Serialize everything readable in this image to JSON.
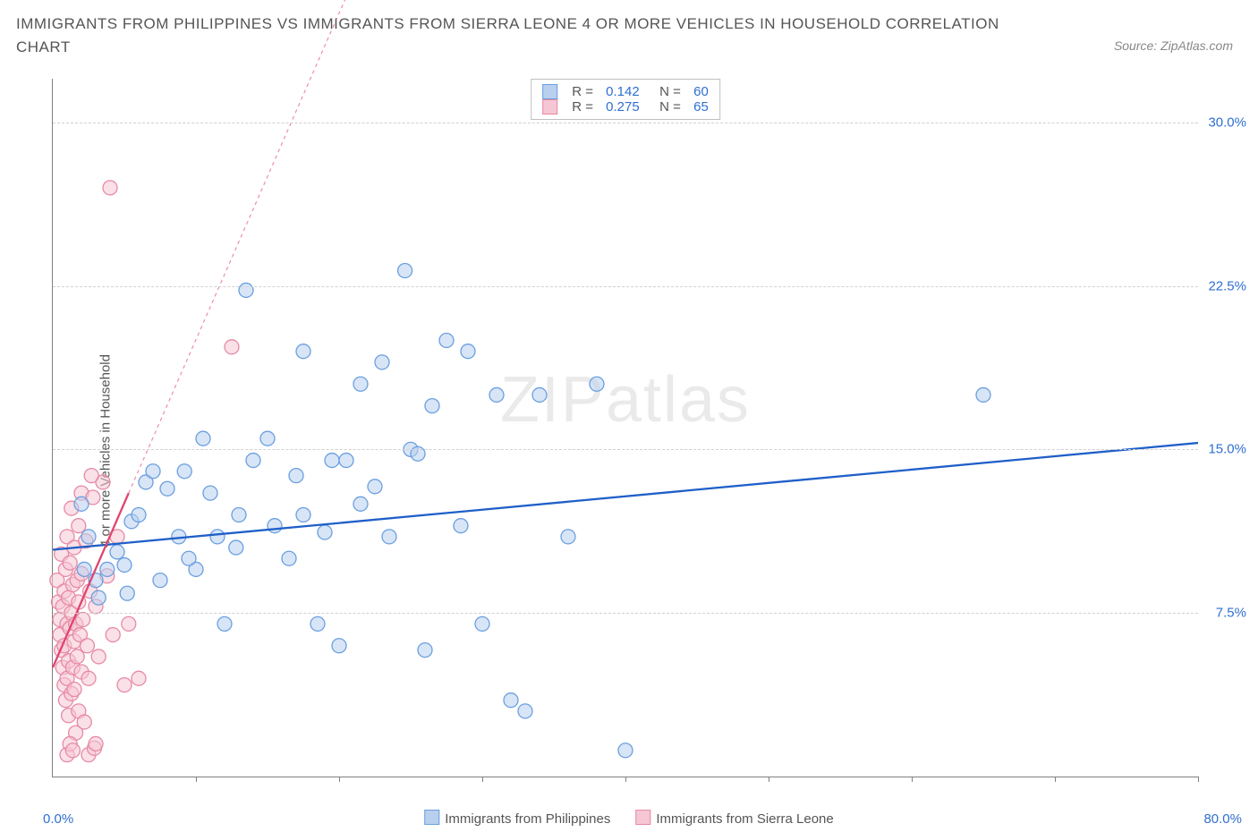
{
  "title": "IMMIGRANTS FROM PHILIPPINES VS IMMIGRANTS FROM SIERRA LEONE 4 OR MORE VEHICLES IN HOUSEHOLD CORRELATION CHART",
  "source_label": "Source: ZipAtlas.com",
  "ylabel": "4 or more Vehicles in Household",
  "watermark_a": "ZIP",
  "watermark_b": "atlas",
  "chart": {
    "type": "scatter",
    "xlim": [
      0,
      80
    ],
    "ylim": [
      0,
      32
    ],
    "x_min_label": "0.0%",
    "x_max_label": "80.0%",
    "x_ticks": [
      10,
      20,
      30,
      40,
      50,
      60,
      70,
      80
    ],
    "y_gridlines": [
      7.5,
      15.0,
      22.5,
      30.0
    ],
    "y_tick_labels": [
      "7.5%",
      "15.0%",
      "22.5%",
      "30.0%"
    ],
    "grid_color": "#d0d0d0",
    "axis_color": "#808080",
    "tick_font_color": "#2f6fd0",
    "marker_radius": 8,
    "marker_stroke_width": 1.3,
    "series": [
      {
        "name": "Immigrants from Philippines",
        "fill": "#b8d0ee",
        "stroke": "#6a9fe0",
        "fill_opacity": 0.55,
        "R": "0.142",
        "N": "60",
        "trend": {
          "x1": 0,
          "y1": 10.4,
          "x2": 80,
          "y2": 15.3,
          "color": "#1f5fc9",
          "width": 2.3,
          "dash": "none",
          "ext_dash": "none"
        },
        "points": [
          [
            2.2,
            9.5
          ],
          [
            2.5,
            11.0
          ],
          [
            3.0,
            9.0
          ],
          [
            3.2,
            8.2
          ],
          [
            2.0,
            12.5
          ],
          [
            3.8,
            9.5
          ],
          [
            4.5,
            10.3
          ],
          [
            5.0,
            9.7
          ],
          [
            5.5,
            11.7
          ],
          [
            5.2,
            8.4
          ],
          [
            6.5,
            13.5
          ],
          [
            6.0,
            12.0
          ],
          [
            7.0,
            14.0
          ],
          [
            7.5,
            9.0
          ],
          [
            8.0,
            13.2
          ],
          [
            8.8,
            11.0
          ],
          [
            9.2,
            14.0
          ],
          [
            10.0,
            9.5
          ],
          [
            10.5,
            15.5
          ],
          [
            11.0,
            13.0
          ],
          [
            11.5,
            11.0
          ],
          [
            12.0,
            7.0
          ],
          [
            12.8,
            10.5
          ],
          [
            13.5,
            22.3
          ],
          [
            14.0,
            14.5
          ],
          [
            15.0,
            15.5
          ],
          [
            15.5,
            11.5
          ],
          [
            16.5,
            10.0
          ],
          [
            17.0,
            13.8
          ],
          [
            17.5,
            19.5
          ],
          [
            18.5,
            7.0
          ],
          [
            19.0,
            11.2
          ],
          [
            20.0,
            6.0
          ],
          [
            20.5,
            14.5
          ],
          [
            21.5,
            18.0
          ],
          [
            22.5,
            13.3
          ],
          [
            23.0,
            19.0
          ],
          [
            24.6,
            23.2
          ],
          [
            25.0,
            15.0
          ],
          [
            26.0,
            5.8
          ],
          [
            26.5,
            17.0
          ],
          [
            27.5,
            20.0
          ],
          [
            28.5,
            11.5
          ],
          [
            29.0,
            19.5
          ],
          [
            30.0,
            7.0
          ],
          [
            31.0,
            17.5
          ],
          [
            32.0,
            3.5
          ],
          [
            33.0,
            3.0
          ],
          [
            34.0,
            17.5
          ],
          [
            36.0,
            11.0
          ],
          [
            38.0,
            18.0
          ],
          [
            40.0,
            1.2
          ],
          [
            21.5,
            12.5
          ],
          [
            23.5,
            11.0
          ],
          [
            17.5,
            12.0
          ],
          [
            9.5,
            10.0
          ],
          [
            13.0,
            12.0
          ],
          [
            19.5,
            14.5
          ],
          [
            25.5,
            14.8
          ],
          [
            65.0,
            17.5
          ]
        ]
      },
      {
        "name": "Immigrants from Sierra Leone",
        "fill": "#f5c6d3",
        "stroke": "#e789a6",
        "fill_opacity": 0.55,
        "R": "0.275",
        "N": "65",
        "trend": {
          "x1": 0,
          "y1": 5.0,
          "x2": 5.3,
          "y2": 13.0,
          "color": "#e0446f",
          "width": 2.3,
          "dash": "none",
          "ext_x2": 22,
          "ext_y2": 38,
          "ext_dash": "4,4"
        },
        "points": [
          [
            0.3,
            9.0
          ],
          [
            0.4,
            8.0
          ],
          [
            0.5,
            7.2
          ],
          [
            0.5,
            6.5
          ],
          [
            0.6,
            5.8
          ],
          [
            0.6,
            10.2
          ],
          [
            0.7,
            5.0
          ],
          [
            0.7,
            7.8
          ],
          [
            0.8,
            4.2
          ],
          [
            0.8,
            8.5
          ],
          [
            0.8,
            6.0
          ],
          [
            0.9,
            9.5
          ],
          [
            0.9,
            3.5
          ],
          [
            1.0,
            7.0
          ],
          [
            1.0,
            4.5
          ],
          [
            1.0,
            11.0
          ],
          [
            1.1,
            8.2
          ],
          [
            1.1,
            5.3
          ],
          [
            1.1,
            2.8
          ],
          [
            1.2,
            6.8
          ],
          [
            1.2,
            9.8
          ],
          [
            1.3,
            3.8
          ],
          [
            1.3,
            7.5
          ],
          [
            1.3,
            12.3
          ],
          [
            1.4,
            5.0
          ],
          [
            1.4,
            8.8
          ],
          [
            1.5,
            6.2
          ],
          [
            1.5,
            10.5
          ],
          [
            1.5,
            4.0
          ],
          [
            1.6,
            7.0
          ],
          [
            1.6,
            2.0
          ],
          [
            1.7,
            9.0
          ],
          [
            1.7,
            5.5
          ],
          [
            1.8,
            8.0
          ],
          [
            1.8,
            11.5
          ],
          [
            1.8,
            3.0
          ],
          [
            1.9,
            6.5
          ],
          [
            2.0,
            13.0
          ],
          [
            2.0,
            4.8
          ],
          [
            2.0,
            9.3
          ],
          [
            2.1,
            7.2
          ],
          [
            2.2,
            2.5
          ],
          [
            2.3,
            10.8
          ],
          [
            2.4,
            6.0
          ],
          [
            2.5,
            4.5
          ],
          [
            2.6,
            8.5
          ],
          [
            2.8,
            12.8
          ],
          [
            3.0,
            7.8
          ],
          [
            3.2,
            5.5
          ],
          [
            3.5,
            13.5
          ],
          [
            3.8,
            9.2
          ],
          [
            4.0,
            27.0
          ],
          [
            4.2,
            6.5
          ],
          [
            4.5,
            11.0
          ],
          [
            2.5,
            1.0
          ],
          [
            2.9,
            1.3
          ],
          [
            3.0,
            1.5
          ],
          [
            1.0,
            1.0
          ],
          [
            1.2,
            1.5
          ],
          [
            1.4,
            1.2
          ],
          [
            5.3,
            7.0
          ],
          [
            5.0,
            4.2
          ],
          [
            6.0,
            4.5
          ],
          [
            2.7,
            13.8
          ],
          [
            12.5,
            19.7
          ]
        ]
      }
    ],
    "bottom_legend": [
      {
        "label": "Immigrants from Philippines",
        "fill": "#b8d0ee",
        "stroke": "#6a9fe0"
      },
      {
        "label": "Immigrants from Sierra Leone",
        "fill": "#f5c6d3",
        "stroke": "#e789a6"
      }
    ]
  }
}
